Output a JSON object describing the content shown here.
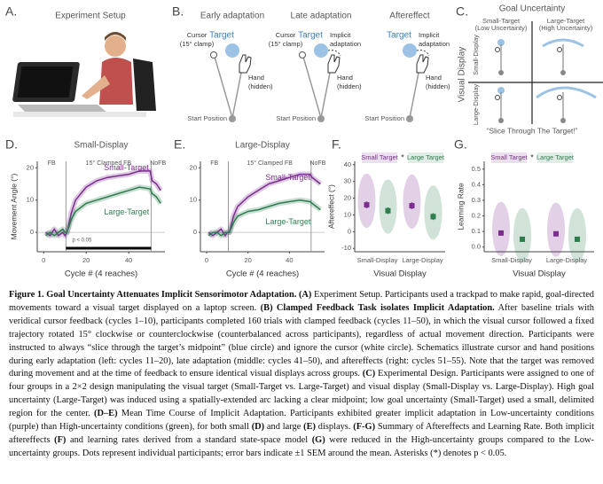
{
  "panels": {
    "a": {
      "letter": "A.",
      "title": "Experiment Setup"
    },
    "b": {
      "letter": "B.",
      "schematics": [
        {
          "title": "Early adaptation",
          "cursor_label": [
            "Cursor",
            "(15° clamp)"
          ],
          "target_label": "Target",
          "hand_label": [
            "Hand",
            "(hidden)"
          ],
          "start_label": "Start Position"
        },
        {
          "title": "Late adaptation",
          "cursor_label": [
            "Cursor",
            "(15° clamp)"
          ],
          "target_label": "Target",
          "adaptation_label": [
            "Implicit",
            "adaptation"
          ],
          "hand_label": [
            "Hand",
            "(hidden)"
          ],
          "start_label": "Start Position"
        },
        {
          "title": "Aftereffect",
          "target_label": "Target",
          "adaptation_label": [
            "Implicit",
            "adaptation"
          ],
          "hand_label": [
            "Hand",
            "(hidden)"
          ],
          "start_label": "Start Position"
        }
      ]
    },
    "c": {
      "letter": "C.",
      "title": "Goal Uncertainty",
      "columns": [
        [
          "Small-Target",
          "(Low Uncertainty)"
        ],
        [
          "Large-Target",
          "(High Uncertainty)"
        ]
      ],
      "axis_label": "Visual Display",
      "rows": [
        "Small-Display",
        "Large-Display"
      ],
      "quote": "“Slice Through The Target!”"
    }
  },
  "chart_data": [
    {
      "type": "line",
      "letter": "D.",
      "title": "Small-Display",
      "xlabel": "Cycle # (4 reaches)",
      "ylabel": "Movement Angle (°)",
      "phases": [
        "FB",
        "15° Clamped FB",
        "NoFB"
      ],
      "significance_label": "p < 0.05",
      "x": [
        1,
        3,
        5,
        7,
        9,
        10,
        11,
        13,
        15,
        20,
        25,
        30,
        35,
        40,
        45,
        50,
        51,
        53,
        55
      ],
      "series": [
        {
          "name": "Small-Target",
          "color": "#7b2d8e",
          "values": [
            0,
            -1,
            1,
            -1,
            0,
            -1,
            0,
            6,
            10,
            14,
            16,
            17,
            17.5,
            18,
            19,
            19,
            16,
            15,
            13
          ]
        },
        {
          "name": "Large-Target",
          "color": "#2e7d4f",
          "values": [
            -1,
            0,
            -1,
            0,
            1,
            0,
            0,
            4,
            6.5,
            9,
            10,
            11,
            12,
            13,
            14,
            13.5,
            12,
            11,
            9
          ]
        }
      ],
      "xlim": [
        -3,
        57
      ],
      "xticks": [
        0,
        20,
        40
      ],
      "ylim": [
        -6,
        22
      ],
      "yticks": [
        0,
        10,
        20
      ]
    },
    {
      "type": "line",
      "letter": "E.",
      "title": "Large-Display",
      "xlabel": "Cycle # (4 reaches)",
      "phases": [
        "FB",
        "15° Clamped FB",
        "NoFB"
      ],
      "x": [
        1,
        3,
        5,
        7,
        9,
        10,
        11,
        13,
        15,
        20,
        25,
        30,
        35,
        40,
        45,
        50,
        51,
        53,
        55
      ],
      "series": [
        {
          "name": "Small-Target",
          "color": "#7b2d8e",
          "values": [
            0,
            -1,
            0,
            1,
            -1,
            0,
            0,
            5,
            8,
            11,
            13,
            15,
            16,
            17,
            18,
            18,
            17,
            16,
            15
          ]
        },
        {
          "name": "Large-Target",
          "color": "#2e7d4f",
          "values": [
            -1,
            0,
            0,
            -1,
            0,
            0,
            0,
            3,
            5,
            6.5,
            7,
            8,
            9,
            9.5,
            10,
            9.5,
            9,
            8,
            7
          ]
        }
      ],
      "xlim": [
        -3,
        57
      ],
      "xticks": [
        0,
        20,
        40
      ],
      "ylim": [
        -6,
        22
      ],
      "yticks": [
        0,
        10,
        20
      ]
    },
    {
      "type": "violin",
      "letter": "F.",
      "xlabel": "Visual Display",
      "ylabel": "Aftereffect (°)",
      "categories": [
        "Small-Display",
        "Large-Display"
      ],
      "significance_label": "*",
      "series": [
        {
          "name": "Small Target",
          "color": "#7b2d8e",
          "values": [
            16,
            15.5
          ],
          "errors": [
            2,
            2
          ]
        },
        {
          "name": "Large Target",
          "color": "#2e7d4f",
          "values": [
            12.5,
            9
          ],
          "errors": [
            2,
            2
          ]
        }
      ],
      "ylim": [
        -12,
        42
      ],
      "yticks": [
        -10,
        0,
        10,
        20,
        30,
        40
      ]
    },
    {
      "type": "violin",
      "letter": "G.",
      "xlabel": "Visual Display",
      "ylabel": "Learning Rate",
      "categories": [
        "Small-Display",
        "Large-Display"
      ],
      "significance_label": "*",
      "series": [
        {
          "name": "Small Target",
          "color": "#7b2d8e",
          "values": [
            0.09,
            0.085
          ],
          "errors": [
            0.012,
            0.012
          ]
        },
        {
          "name": "Large Target",
          "color": "#2e7d4f",
          "values": [
            0.05,
            0.05
          ],
          "errors": [
            0.01,
            0.01
          ]
        }
      ],
      "ylim": [
        -0.03,
        0.55
      ],
      "yticks": [
        {
          "value": 0,
          "label": "0.0"
        },
        0.1,
        0.2,
        0.3,
        0.4,
        0.5
      ]
    }
  ],
  "caption": {
    "runs": [
      {
        "text": "Figure 1. Goal Uncertainty Attenuates Implicit Sensorimotor Adaptation.",
        "bold": true
      },
      {
        "text": " ",
        "bold": false
      },
      {
        "text": "(A)",
        "bold": true
      },
      {
        "text": " Experiment Setup. Participants used a trackpad to make rapid, goal-directed movements toward a visual target displayed on a laptop screen. ",
        "bold": false
      },
      {
        "text": "(B) Clamped Feedback Task isolates Implicit Adaptation.",
        "bold": true
      },
      {
        "text": " After baseline trials with veridical cursor feedback (cycles 1–10), participants completed 160 trials with clamped feedback (cycles 11–50), in which the visual cursor followed a fixed trajectory rotated 15° clockwise or counterclockwise (counterbalanced across participants), regardless of actual movement direction. Participants were instructed to always “slice through the target’s midpoint” (blue circle) and ignore the cursor (white circle). Schematics illustrate cursor and hand positions during early adaptation (left: cycles 11–20), late adaptation (middle: cycles 41–50), and aftereffects (right: cycles 51–55). Note that the target was removed during movement and at the time of feedback to ensure identical visual displays across groups. ",
        "bold": false
      },
      {
        "text": "(C)",
        "bold": true
      },
      {
        "text": " Experimental Design. Participants were assigned to one of four groups in a 2×2 design manipulating the visual target (Small-Target vs. Large-Target) and visual display (Small-Display vs. Large-Display). High goal uncertainty (Large-Target) was induced using a spatially-extended arc lacking a clear midpoint; low goal uncertainty (Small-Target) used a small, delimited region for the center. ",
        "bold": false
      },
      {
        "text": "(D–E)",
        "bold": true
      },
      {
        "text": " Mean Time Course of Implicit Adaptation. Participants exhibited greater implicit adaptation in Low-uncertainty conditions (purple) than High-uncertainty conditions (green), for both small ",
        "bold": false
      },
      {
        "text": "(D)",
        "bold": true
      },
      {
        "text": " and large ",
        "bold": false
      },
      {
        "text": "(E)",
        "bold": true
      },
      {
        "text": " displays. ",
        "bold": false
      },
      {
        "text": "(F-G)",
        "bold": true
      },
      {
        "text": " Summary of Aftereffects and Learning Rate. Both implicit aftereffects ",
        "bold": false
      },
      {
        "text": "(F)",
        "bold": true
      },
      {
        "text": " and learning rates derived from a standard state-space model ",
        "bold": false
      },
      {
        "text": "(G)",
        "bold": true
      },
      {
        "text": " were reduced in the High-uncertainty groups compared to the Low-uncertainty groups. Dots represent individual participants; error bars indicate ±1 SEM around the mean. Asterisks (*) denotes p < 0.05.",
        "bold": false
      }
    ]
  }
}
